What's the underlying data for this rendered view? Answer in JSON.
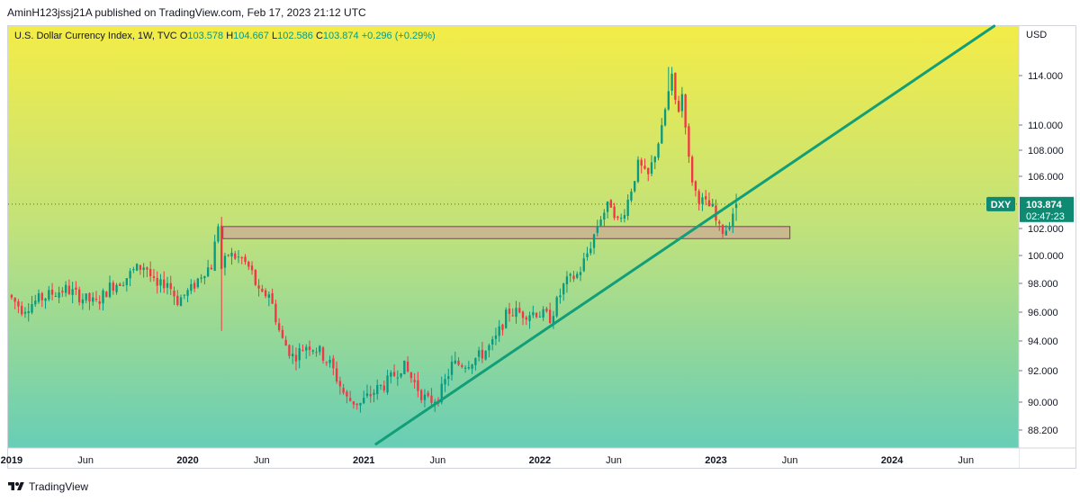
{
  "header": {
    "published_text": "AminH123jssj21A published on TradingView.com, Feb 17, 2023 21:12 UTC"
  },
  "footer": {
    "brand": "TradingView"
  },
  "colors": {
    "up": "#089981",
    "down": "#f23645",
    "trendline": "#119e78",
    "zone_fill": "#c9b68e",
    "zone_border": "#8a2f8a",
    "price_label": "#0f8a72"
  },
  "chart_data": {
    "type": "candlestick",
    "symbol": "DXY",
    "title": "U.S. Dollar Currency Index, 1W, TVC",
    "ohlc": {
      "o_label": "O",
      "o": "103.578",
      "h_label": "H",
      "h": "104.667",
      "l_label": "L",
      "l": "102.586",
      "c_label": "C",
      "c": "103.874",
      "change": "+0.296 (+0.29%)"
    },
    "currency": "USD",
    "last_price": 103.874,
    "last_price_label": "103.874",
    "countdown": "02:47:23",
    "ylim": [
      87.5,
      118
    ],
    "y_ticks": [
      {
        "v": 114.0,
        "label": "114.000"
      },
      {
        "v": 110.0,
        "label": "110.000"
      },
      {
        "v": 108.0,
        "label": "108.000"
      },
      {
        "v": 106.0,
        "label": "106.000"
      },
      {
        "v": 102.0,
        "label": "102.000"
      },
      {
        "v": 100.0,
        "label": "100.000"
      },
      {
        "v": 98.0,
        "label": "98.000"
      },
      {
        "v": 96.0,
        "label": "96.000"
      },
      {
        "v": 94.0,
        "label": "94.000"
      },
      {
        "v": 92.0,
        "label": "92.000"
      },
      {
        "v": 90.0,
        "label": "90.000"
      },
      {
        "v": 88.2,
        "label": "88.200"
      }
    ],
    "x_range": [
      2018.98,
      2024.72
    ],
    "x_ticks": [
      {
        "t": 2019.0,
        "label": "2019",
        "bold": true
      },
      {
        "t": 2019.42,
        "label": "Jun",
        "bold": false
      },
      {
        "t": 2020.0,
        "label": "2020",
        "bold": true
      },
      {
        "t": 2020.42,
        "label": "Jun",
        "bold": false
      },
      {
        "t": 2021.0,
        "label": "2021",
        "bold": true
      },
      {
        "t": 2021.42,
        "label": "Jun",
        "bold": false
      },
      {
        "t": 2022.0,
        "label": "2022",
        "bold": true
      },
      {
        "t": 2022.42,
        "label": "Jun",
        "bold": false
      },
      {
        "t": 2023.0,
        "label": "2023",
        "bold": true
      },
      {
        "t": 2023.42,
        "label": "Jun",
        "bold": false
      },
      {
        "t": 2024.0,
        "label": "2024",
        "bold": true
      },
      {
        "t": 2024.42,
        "label": "Jun",
        "bold": false
      }
    ],
    "path": [
      [
        2019.0,
        97.2
      ],
      [
        2019.08,
        96.2
      ],
      [
        2019.16,
        96.8
      ],
      [
        2019.25,
        97.3
      ],
      [
        2019.33,
        97.6
      ],
      [
        2019.42,
        97.0
      ],
      [
        2019.5,
        96.6
      ],
      [
        2019.58,
        97.8
      ],
      [
        2019.66,
        98.3
      ],
      [
        2019.72,
        99.0
      ],
      [
        2019.78,
        99.3
      ],
      [
        2019.84,
        97.6
      ],
      [
        2019.9,
        98.2
      ],
      [
        2019.96,
        96.8
      ],
      [
        2020.04,
        97.6
      ],
      [
        2020.11,
        98.9
      ],
      [
        2020.16,
        99.3
      ],
      [
        2020.19,
        102.8
      ],
      [
        2020.21,
        99.0
      ],
      [
        2020.25,
        100.1
      ],
      [
        2020.29,
        99.9
      ],
      [
        2020.33,
        99.7
      ],
      [
        2020.38,
        98.9
      ],
      [
        2020.43,
        97.0
      ],
      [
        2020.48,
        97.4
      ],
      [
        2020.55,
        94.2
      ],
      [
        2020.62,
        92.9
      ],
      [
        2020.7,
        93.8
      ],
      [
        2020.76,
        93.4
      ],
      [
        2020.83,
        92.4
      ],
      [
        2020.92,
        90.2
      ],
      [
        2021.0,
        89.9
      ],
      [
        2021.08,
        90.7
      ],
      [
        2021.16,
        91.3
      ],
      [
        2021.24,
        92.4
      ],
      [
        2021.32,
        91.0
      ],
      [
        2021.38,
        90.0
      ],
      [
        2021.45,
        90.4
      ],
      [
        2021.52,
        92.4
      ],
      [
        2021.6,
        92.5
      ],
      [
        2021.68,
        93.0
      ],
      [
        2021.76,
        93.9
      ],
      [
        2021.84,
        96.1
      ],
      [
        2021.92,
        95.9
      ],
      [
        2022.0,
        96.0
      ],
      [
        2022.08,
        95.6
      ],
      [
        2022.16,
        98.0
      ],
      [
        2022.24,
        98.7
      ],
      [
        2022.3,
        100.5
      ],
      [
        2022.36,
        102.8
      ],
      [
        2022.42,
        104.0
      ],
      [
        2022.47,
        102.3
      ],
      [
        2022.52,
        104.2
      ],
      [
        2022.58,
        107.0
      ],
      [
        2022.63,
        105.8
      ],
      [
        2022.67,
        107.6
      ],
      [
        2022.71,
        109.5
      ],
      [
        2022.74,
        112.0
      ],
      [
        2022.77,
        113.8
      ],
      [
        2022.8,
        110.8
      ],
      [
        2022.83,
        112.7
      ],
      [
        2022.87,
        106.5
      ],
      [
        2022.91,
        104.5
      ],
      [
        2022.95,
        104.0
      ],
      [
        2023.0,
        103.5
      ],
      [
        2023.03,
        102.0
      ],
      [
        2023.07,
        101.8
      ],
      [
        2023.1,
        102.6
      ],
      [
        2023.13,
        103.87
      ]
    ],
    "zone": {
      "t1": 2020.2,
      "t2": 2023.42,
      "y_low": 101.25,
      "y_high": 102.15
    },
    "trendline": {
      "t1": 2021.07,
      "y1": 87.3,
      "t2": 2024.58,
      "y2": 118.0
    }
  }
}
